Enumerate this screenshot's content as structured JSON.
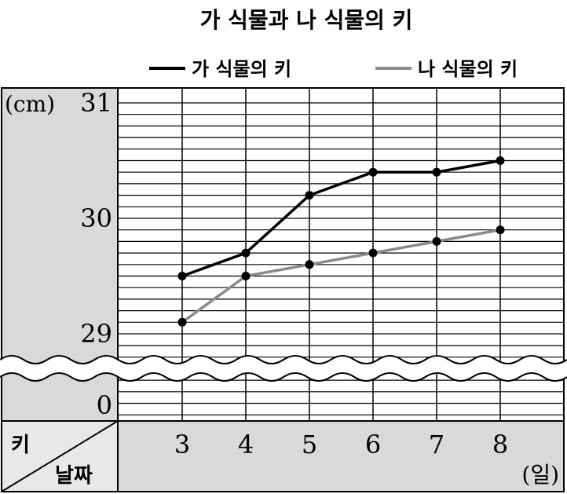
{
  "chart_data": {
    "type": "line",
    "title": "가 식물과 나 식물의 키",
    "ylabel": "키",
    "xlabel": "날짜",
    "y_unit": "(cm)",
    "x_unit": "(일)",
    "categories": [
      "3",
      "4",
      "5",
      "6",
      "7",
      "8"
    ],
    "ylim": [
      29,
      31
    ],
    "y_ticks": [
      "31",
      "30",
      "29",
      "0"
    ],
    "axis_break": true,
    "grid": true,
    "legend_position": "top-right",
    "series": [
      {
        "name": "가 식물의 키",
        "color": "#000000",
        "values": [
          29.5,
          29.7,
          30.2,
          30.4,
          30.4,
          30.5
        ]
      },
      {
        "name": "나 식물의 키",
        "color": "#8a8a8a",
        "values": [
          29.1,
          29.5,
          29.6,
          29.7,
          29.8,
          29.9
        ]
      }
    ]
  },
  "colors": {
    "panel": "#d9d9d9",
    "grid": "#000000",
    "background": "#ffffff"
  }
}
